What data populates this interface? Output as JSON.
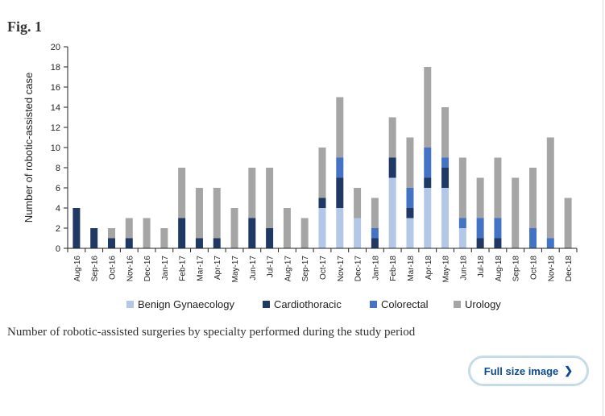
{
  "figure": {
    "label": "Fig. 1"
  },
  "caption": "Number of robotic-assisted surgeries by specialty performed during the study period",
  "full_size_link": {
    "label": "Full size image"
  },
  "icons": {
    "full_size_link": "chevron-right-icon"
  },
  "chart_data": {
    "type": "bar",
    "stacked": true,
    "title": "",
    "xlabel": "",
    "ylabel": "Number of robotic-assisted case",
    "ylim": [
      0,
      20
    ],
    "yticks": [
      0,
      2,
      4,
      6,
      8,
      10,
      12,
      14,
      16,
      18,
      20
    ],
    "grid": false,
    "legend_position": "bottom",
    "categories": [
      "Aug-16",
      "Sep-16",
      "Oct-16",
      "Nov-16",
      "Dec-16",
      "Jan-17",
      "Feb-17",
      "Mar-17",
      "Apr-17",
      "May-17",
      "Jun-17",
      "Jul-17",
      "Aug-17",
      "Sep-17",
      "Oct-17",
      "Nov-17",
      "Dec-17",
      "Jan-18",
      "Feb-18",
      "Mar-18",
      "Apr-18",
      "May-18",
      "Jun-18",
      "Jul-18",
      "Aug-18",
      "Sep-18",
      "Oct-18",
      "Nov-18",
      "Dec-18"
    ],
    "series": [
      {
        "name": "Benign Gynaecology",
        "color": "#b4c7e7",
        "values": [
          0,
          0,
          0,
          0,
          0,
          0,
          0,
          0,
          0,
          0,
          0,
          0,
          0,
          0,
          4,
          4,
          3,
          0,
          7,
          3,
          6,
          6,
          2,
          0,
          0,
          0,
          0,
          0,
          0
        ]
      },
      {
        "name": "Cardiothoracic",
        "color": "#1f3864",
        "values": [
          4,
          2,
          1,
          1,
          0,
          0,
          3,
          1,
          1,
          0,
          3,
          2,
          0,
          0,
          1,
          3,
          0,
          1,
          2,
          1,
          1,
          2,
          0,
          1,
          1,
          0,
          0,
          0,
          0
        ]
      },
      {
        "name": "Colorectal",
        "color": "#4472c4",
        "values": [
          0,
          0,
          0,
          0,
          0,
          0,
          0,
          0,
          0,
          0,
          0,
          0,
          0,
          0,
          0,
          2,
          0,
          1,
          0,
          2,
          3,
          1,
          1,
          2,
          2,
          0,
          2,
          1,
          0
        ]
      },
      {
        "name": "Urology",
        "color": "#a5a5a5",
        "values": [
          0,
          0,
          1,
          2,
          3,
          2,
          5,
          5,
          5,
          4,
          5,
          6,
          4,
          3,
          5,
          6,
          3,
          3,
          4,
          5,
          8,
          5,
          6,
          4,
          6,
          7,
          6,
          10,
          5
        ]
      }
    ]
  }
}
